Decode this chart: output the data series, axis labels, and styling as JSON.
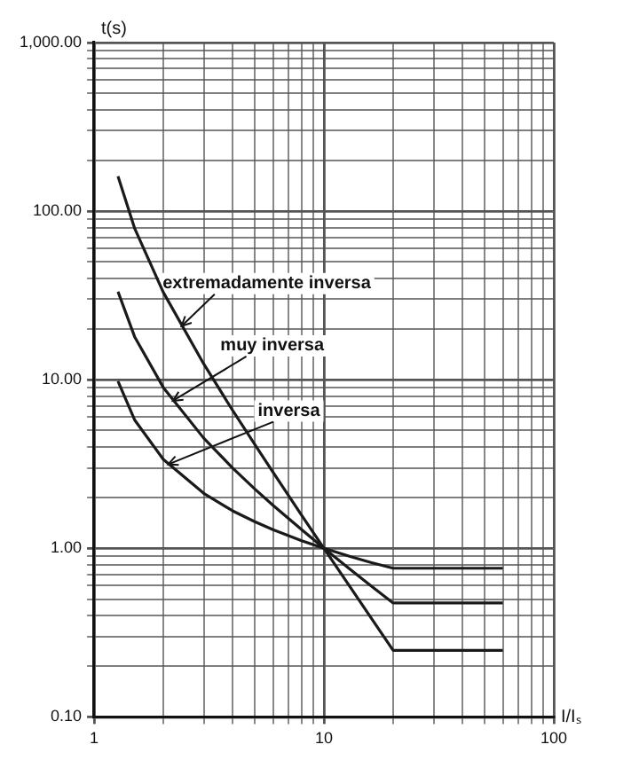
{
  "chart_data": {
    "type": "line",
    "xlabel": "I/Iₛ",
    "ylabel": "t(s)",
    "log": "xy",
    "grid": true,
    "legend": false,
    "marker": "none",
    "line_style": "solid",
    "x": [
      1.27,
      1.5,
      2,
      3,
      4,
      5,
      6,
      8,
      10,
      13,
      16,
      20,
      60
    ],
    "series": [
      {
        "color": "#1a1a1a",
        "values": [
          161,
          79.2,
          33,
          12.4,
          6.6,
          4.13,
          2.83,
          1.57,
          1,
          0.59,
          0.388,
          0.248,
          0.248
        ]
      },
      {
        "color": "#1a1a1a",
        "values": [
          33.3,
          18,
          9,
          4.5,
          3,
          2.25,
          1.8,
          1.29,
          1,
          0.75,
          0.6,
          0.474,
          0.474
        ]
      },
      {
        "color": "#1a1a1a",
        "values": [
          9.8,
          5.78,
          3.37,
          2.12,
          1.67,
          1.44,
          1.29,
          1.11,
          1,
          0.894,
          0.825,
          0.762,
          0.762
        ]
      }
    ],
    "xlim": [
      1,
      100
    ],
    "xticks": [
      1,
      {
        "value": 2,
        "label": null
      },
      {
        "value": 3,
        "label": null
      },
      {
        "value": 4,
        "label": null
      },
      {
        "value": 5,
        "label": null
      },
      {
        "value": 6,
        "label": null
      },
      {
        "value": 7,
        "label": null
      },
      {
        "value": 8,
        "label": null
      },
      {
        "value": 9,
        "label": null
      },
      10,
      {
        "value": 20,
        "label": null
      },
      {
        "value": 30,
        "label": null
      },
      {
        "value": 40,
        "label": null
      },
      {
        "value": 50,
        "label": null
      },
      {
        "value": 60,
        "label": null
      },
      {
        "value": 70,
        "label": null
      },
      {
        "value": 80,
        "label": null
      },
      {
        "value": 90,
        "label": null
      },
      100
    ],
    "ylim": [
      0.1,
      1000
    ],
    "yticks": [
      {
        "value": 0.1,
        "label": "0.10"
      },
      {
        "value": 0.2,
        "label": null
      },
      {
        "value": 0.3,
        "label": null
      },
      {
        "value": 0.4,
        "label": null
      },
      {
        "value": 0.5,
        "label": null
      },
      {
        "value": 0.6,
        "label": null
      },
      {
        "value": 0.7,
        "label": null
      },
      {
        "value": 0.8,
        "label": null
      },
      {
        "value": 0.9,
        "label": null
      },
      {
        "value": 1,
        "label": "1.00"
      },
      {
        "value": 2,
        "label": null
      },
      {
        "value": 3,
        "label": null
      },
      {
        "value": 4,
        "label": null
      },
      {
        "value": 5,
        "label": null
      },
      {
        "value": 6,
        "label": null
      },
      {
        "value": 7,
        "label": null
      },
      {
        "value": 8,
        "label": null
      },
      {
        "value": 9,
        "label": null
      },
      {
        "value": 10,
        "label": "10.00"
      },
      {
        "value": 20,
        "label": null
      },
      {
        "value": 30,
        "label": null
      },
      {
        "value": 40,
        "label": null
      },
      {
        "value": 50,
        "label": null
      },
      {
        "value": 60,
        "label": null
      },
      {
        "value": 70,
        "label": null
      },
      {
        "value": 80,
        "label": null
      },
      {
        "value": 90,
        "label": null
      },
      {
        "value": 100,
        "label": "100.00"
      },
      {
        "value": 200,
        "label": null
      },
      {
        "value": 300,
        "label": null
      },
      {
        "value": 400,
        "label": null
      },
      {
        "value": 500,
        "label": null
      },
      {
        "value": 600,
        "label": null
      },
      {
        "value": 700,
        "label": null
      },
      {
        "value": 800,
        "label": null
      },
      {
        "value": 900,
        "label": null
      },
      {
        "value": 1000,
        "label": "1,000.00"
      }
    ],
    "annotations": [
      {
        "text": "extremadamente inversa",
        "x": 2.4,
        "y": 20.8
      },
      {
        "text": "muy inversa",
        "x": 2.2,
        "y": 7.5
      },
      {
        "text": "inversa",
        "x": 2.1,
        "y": 3.15
      }
    ]
  }
}
